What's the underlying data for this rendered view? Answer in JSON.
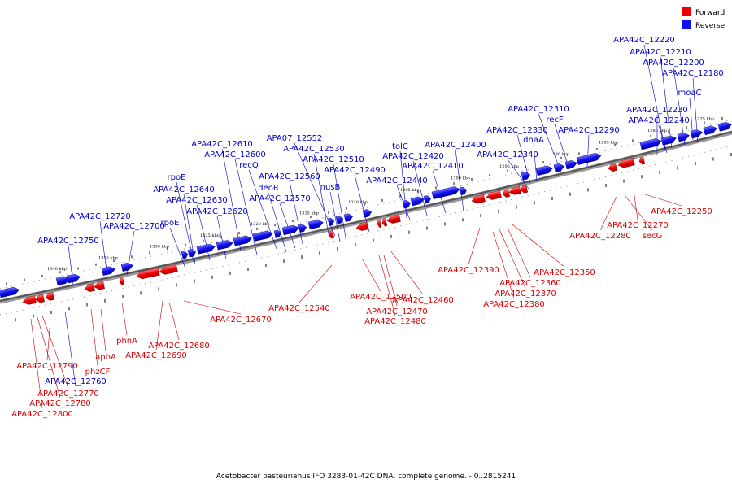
{
  "caption": "Acetobacter pasteurianus IFO 3283-01-42C DNA, complete genome. - 0..2815241",
  "legend": [
    {
      "label": "Forward",
      "color": "#ee0000"
    },
    {
      "label": "Reverse",
      "color": "#1010ee"
    }
  ],
  "colors": {
    "forward": "#ee0000",
    "reverse": "#1010ee"
  },
  "kbp_marks": [
    "1340 kbp",
    "1335 kbp",
    "1330 kbp",
    "1325 kbp",
    "1320 kbp",
    "1315 kbp",
    "1310 kbp",
    "1305 kbp",
    "1300 kbp",
    "1295 kbp",
    "1290 kbp",
    "1285 kbp",
    "1280 kbp",
    "1275 kbp"
  ],
  "reverse_labels": [
    "APA42C_12220",
    "APA42C_12210",
    "APA42C_12200",
    "APA42C_12180",
    "moaC",
    "APA42C_12230",
    "APA42C_12240",
    "APA42C_12310",
    "recF",
    "dnaA",
    "APA42C_12330",
    "APA42C_12290",
    "APA42C_12340",
    "tolC",
    "APA42C_12400",
    "APA42C_12420",
    "APA42C_12410",
    "APA42C_12440",
    "APA07_12552",
    "APA42C_12530",
    "APA42C_12510",
    "APA42C_12490",
    "nusB",
    "APA42C_12610",
    "APA42C_12600",
    "recQ",
    "APA42C_12560",
    "deoR",
    "APA42C_12570",
    "rpoE",
    "APA42C_12640",
    "APA42C_12630",
    "APA42C_12620",
    "rpoE",
    "APA42C_12720",
    "APA42C_12700",
    "APA42C_12750",
    "APA42C_12760"
  ],
  "forward_labels": [
    "APA42C_12250",
    "APA42C_12270",
    "secG",
    "APA42C_12280",
    "APA42C_12390",
    "APA42C_12350",
    "APA42C_12360",
    "APA42C_12370",
    "APA42C_12380",
    "APA42C_12500",
    "APA42C_12460",
    "APA42C_12470",
    "APA42C_12480",
    "APA42C_12540",
    "APA42C_12670",
    "APA42C_12680",
    "APA42C_12690",
    "phnA",
    "apbA",
    "phzCF",
    "APA42C_12790",
    "APA42C_12770",
    "APA42C_12780",
    "APA42C_12800"
  ]
}
